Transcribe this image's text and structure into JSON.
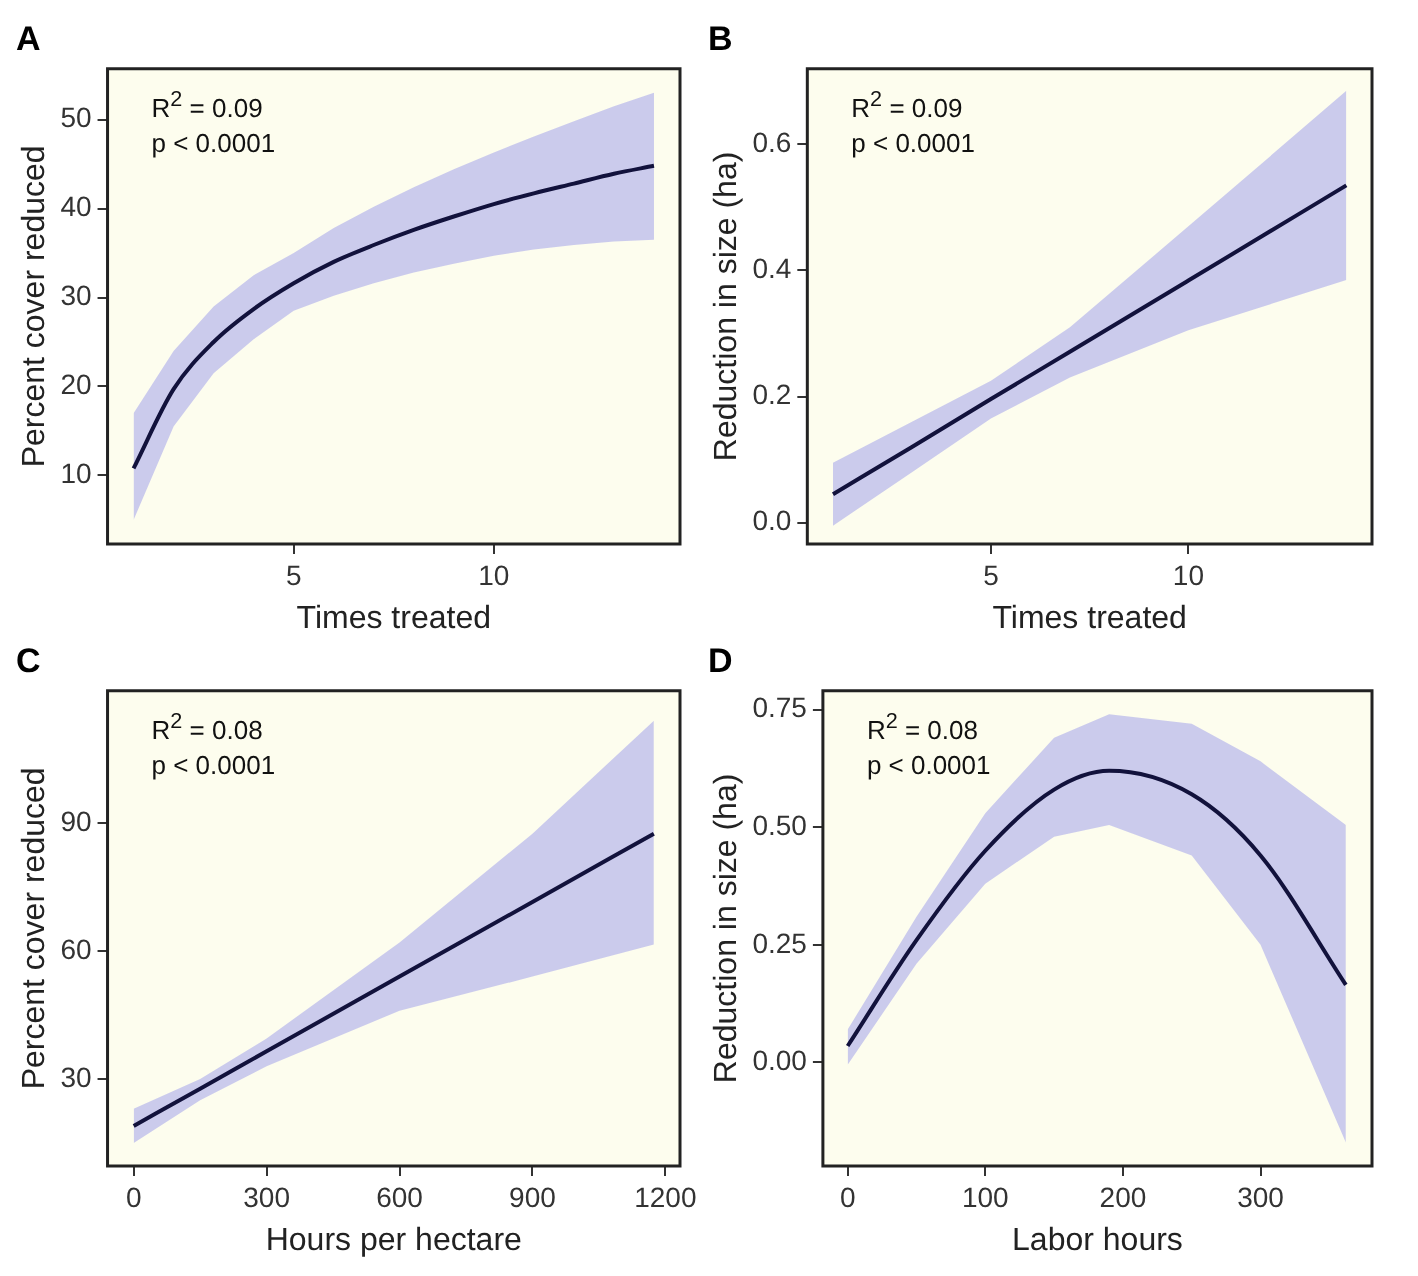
{
  "chart_data": [
    {
      "type": "line",
      "title": "A",
      "xlabel": "Times treated",
      "ylabel": "Percent cover reduced",
      "annotations": [
        "R$^{2}$ = 0.09",
        "p < 0.0001"
      ],
      "xlim": [
        0.35,
        14.65
      ],
      "xticks": [
        5,
        10
      ],
      "ylim": [
        2.3,
        55.7
      ],
      "yticks": [
        10,
        20,
        30,
        40,
        50
      ],
      "series": [
        {
          "color": "#12123c",
          "x": [
            1,
            2,
            3,
            4,
            5,
            6,
            7,
            8,
            9,
            10,
            11,
            12,
            13,
            14
          ],
          "values": [
            10.8,
            19.7,
            25.0,
            28.7,
            31.6,
            34.0,
            35.9,
            37.6,
            39.1,
            40.5,
            41.7,
            42.8,
            43.9,
            44.8
          ],
          "upper": [
            17,
            24,
            29,
            32.5,
            35,
            37.8,
            40.2,
            42.4,
            44.4,
            46.3,
            48.1,
            49.8,
            51.5,
            53
          ],
          "lower": [
            5,
            15.5,
            21.5,
            25.3,
            28.5,
            30.2,
            31.6,
            32.8,
            33.8,
            34.7,
            35.4,
            35.9,
            36.3,
            36.5
          ]
        }
      ]
    },
    {
      "type": "line",
      "title": "B",
      "xlabel": "Times treated",
      "ylabel": "Reduction in size (ha)",
      "annotations": [
        "R$^{2}$ = 0.09",
        "p < 0.0001"
      ],
      "xlim": [
        0.35,
        14.65
      ],
      "xticks": [
        5,
        10
      ],
      "ylim": [
        -0.034,
        0.72
      ],
      "yticks": [
        {
          "value": 0,
          "label": "0.0"
        },
        {
          "value": 0.2,
          "label": "0.2"
        },
        {
          "value": 0.4,
          "label": "0.4"
        },
        {
          "value": 0.6,
          "label": "0.6"
        }
      ],
      "series": [
        {
          "color": "#12123c",
          "x": [
            1,
            3,
            5,
            7,
            10,
            14
          ],
          "values": [
            0.045,
            0.12,
            0.196,
            0.271,
            0.384,
            0.535
          ],
          "upper": [
            0.095,
            0.16,
            0.225,
            0.31,
            0.47,
            0.685
          ],
          "lower": [
            -0.005,
            0.08,
            0.165,
            0.23,
            0.305,
            0.385
          ]
        }
      ]
    },
    {
      "type": "line",
      "title": "C",
      "xlabel": "Hours per hectare",
      "ylabel": "Percent cover reduced",
      "annotations": [
        "R$^{2}$ = 0.08",
        "p < 0.0001"
      ],
      "xlim": [
        -59,
        1233
      ],
      "xticks": [
        0,
        300,
        600,
        900,
        1200
      ],
      "ylim": [
        9.6,
        121
      ],
      "yticks": [
        30,
        60,
        90
      ],
      "series": [
        {
          "color": "#12123c",
          "x": [
            0,
            150,
            300,
            600,
            900,
            1174
          ],
          "values": [
            19,
            27.7,
            36.5,
            54,
            71.5,
            87.5
          ],
          "upper": [
            23,
            30,
            39.5,
            62,
            87.5,
            114
          ],
          "lower": [
            15,
            25,
            33,
            46,
            54,
            61.5
          ]
        }
      ]
    },
    {
      "type": "line",
      "title": "D",
      "xlabel": "Labor hours",
      "ylabel": "Reduction in size (ha)",
      "annotations": [
        "R$^{2}$ = 0.08",
        "p < 0.0001"
      ],
      "xlim": [
        -18,
        381
      ],
      "xticks": [
        0,
        100,
        200,
        300
      ],
      "ylim": [
        -0.22,
        0.79
      ],
      "yticks": [
        {
          "value": 0,
          "label": "0.00"
        },
        0.25,
        {
          "value": 0.5,
          "label": "0.50"
        },
        0.75
      ],
      "series": [
        {
          "color": "#12123c",
          "x": [
            0,
            50,
            100,
            150,
            190,
            250,
            300,
            362
          ],
          "values": [
            0.035,
            0.26,
            0.45,
            0.58,
            0.62,
            0.57,
            0.44,
            0.165
          ],
          "upper": [
            0.07,
            0.31,
            0.53,
            0.69,
            0.74,
            0.72,
            0.64,
            0.505
          ],
          "lower": [
            -0.005,
            0.21,
            0.38,
            0.48,
            0.505,
            0.44,
            0.25,
            -0.17
          ]
        }
      ]
    }
  ]
}
